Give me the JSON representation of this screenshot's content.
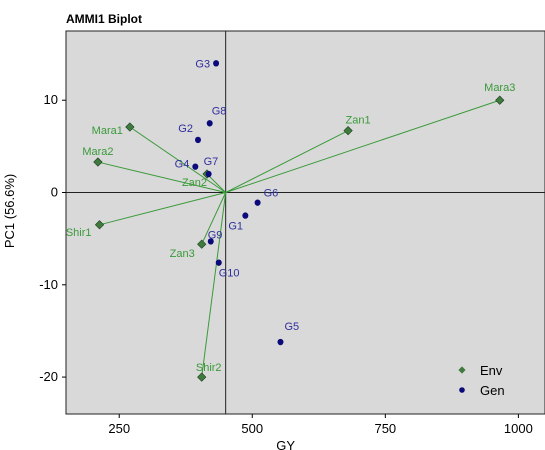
{
  "chart_data": {
    "type": "scatter",
    "title": "AMMI1 Biplot",
    "xlabel": "GY",
    "ylabel": "PC1 (56.6%)",
    "xlim": [
      150,
      1050
    ],
    "ylim": [
      -24,
      17.5
    ],
    "xticks": [
      250,
      500,
      750,
      1000
    ],
    "yticks": [
      -20,
      -10,
      0,
      10
    ],
    "ref_x": 450,
    "ref_y": 0,
    "origin": [
      450,
      0
    ],
    "grid": false,
    "legend_position": "bottom-right",
    "colors": {
      "plot_background": "#d9d9d9",
      "env": "#3a9a3a",
      "env_marker": "#3f7a3f",
      "gen": "#2f2f9c",
      "gen_marker": "#0a0a7a",
      "ref_line": "#222222"
    },
    "series": [
      {
        "name": "Env",
        "marker": "diamond",
        "vectors_from_origin": true,
        "points": [
          {
            "label": "Mara3",
            "x": 965,
            "y": 10.0
          },
          {
            "label": "Zan1",
            "x": 680,
            "y": 6.7
          },
          {
            "label": "Mara1",
            "x": 270,
            "y": 7.1
          },
          {
            "label": "Mara2",
            "x": 210,
            "y": 3.3
          },
          {
            "label": "Zan2",
            "x": 415,
            "y": 2.0
          },
          {
            "label": "Shir1",
            "x": 213,
            "y": -3.5
          },
          {
            "label": "Zan3",
            "x": 405,
            "y": -5.6
          },
          {
            "label": "Shir2",
            "x": 405,
            "y": -20.0
          }
        ]
      },
      {
        "name": "Gen",
        "marker": "dot",
        "points": [
          {
            "label": "G3",
            "x": 432,
            "y": 14.0
          },
          {
            "label": "G8",
            "x": 420,
            "y": 7.5
          },
          {
            "label": "G2",
            "x": 398,
            "y": 5.7
          },
          {
            "label": "G4",
            "x": 393,
            "y": 2.8
          },
          {
            "label": "G7",
            "x": 418,
            "y": 2.0
          },
          {
            "label": "G6",
            "x": 510,
            "y": -1.1
          },
          {
            "label": "G1",
            "x": 487,
            "y": -2.5
          },
          {
            "label": "G9",
            "x": 422,
            "y": -5.3
          },
          {
            "label": "G10",
            "x": 437,
            "y": -7.6
          },
          {
            "label": "G5",
            "x": 553,
            "y": -16.2
          }
        ]
      }
    ]
  }
}
